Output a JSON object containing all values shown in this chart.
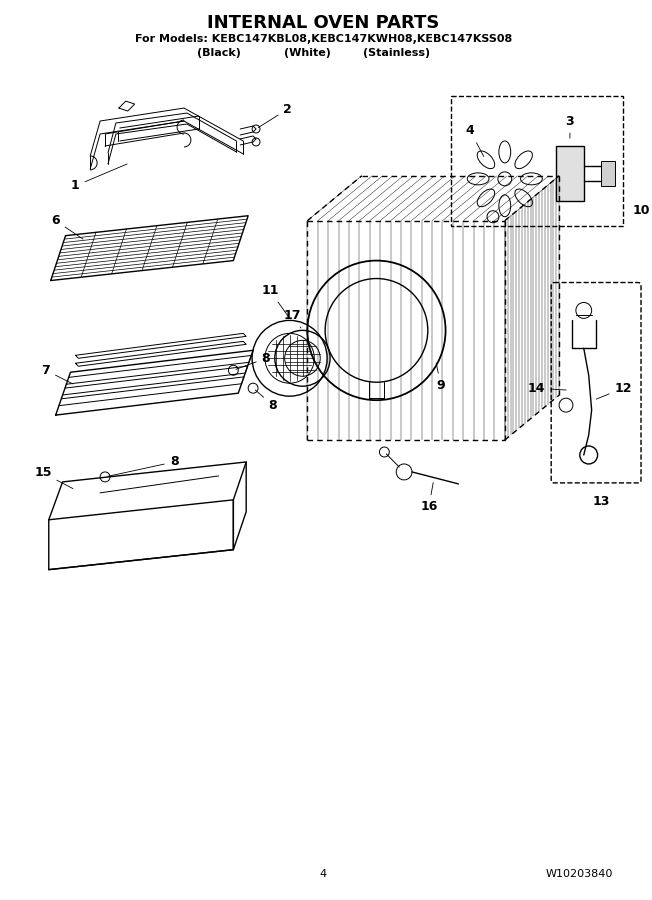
{
  "title": "INTERNAL OVEN PARTS",
  "subtitle_line1": "For Models: KEBC147KBL08,KEBC147KWH08,KEBC147KSS08",
  "subtitle_line2_col1": "(Black)",
  "subtitle_line2_col2": "(White)",
  "subtitle_line2_col3": "(Stainless)",
  "page_number": "4",
  "part_number": "W10203840",
  "bg_color": "#ffffff",
  "line_color": "#000000",
  "title_fontsize": 13,
  "subtitle_fontsize": 8,
  "footer_fontsize": 8
}
